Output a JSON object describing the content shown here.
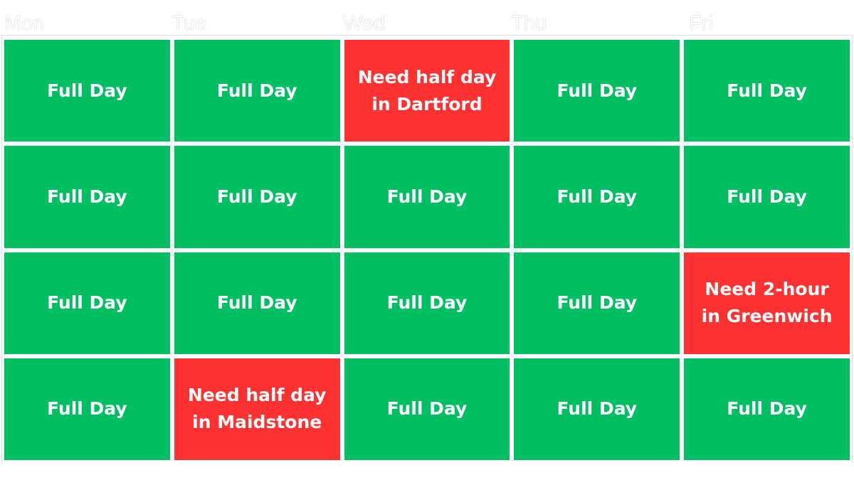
{
  "days": [
    "Mon",
    "Tue",
    "Wed",
    "Thu",
    "Fri"
  ],
  "colors": {
    "full_day": "#00bf63",
    "need": "#ff3131"
  },
  "rows": [
    [
      {
        "text": "Full Day",
        "status": "full"
      },
      {
        "text": "Full Day",
        "status": "full"
      },
      {
        "text": "Need half day\nin Dartford",
        "status": "need"
      },
      {
        "text": "Full Day",
        "status": "full"
      },
      {
        "text": "Full Day",
        "status": "full"
      }
    ],
    [
      {
        "text": "Full Day",
        "status": "full"
      },
      {
        "text": "Full Day",
        "status": "full"
      },
      {
        "text": "Full Day",
        "status": "full"
      },
      {
        "text": "Full Day",
        "status": "full"
      },
      {
        "text": "Full Day",
        "status": "full"
      }
    ],
    [
      {
        "text": "Full Day",
        "status": "full"
      },
      {
        "text": "Full Day",
        "status": "full"
      },
      {
        "text": "Full Day",
        "status": "full"
      },
      {
        "text": "Full Day",
        "status": "full"
      },
      {
        "text": "Need 2-hour\nin Greenwich",
        "status": "need"
      }
    ],
    [
      {
        "text": "Full Day",
        "status": "full"
      },
      {
        "text": "Need half day\nin Maidstone",
        "status": "need"
      },
      {
        "text": "Full Day",
        "status": "full"
      },
      {
        "text": "Full Day",
        "status": "full"
      },
      {
        "text": "Full Day",
        "status": "full"
      }
    ]
  ]
}
